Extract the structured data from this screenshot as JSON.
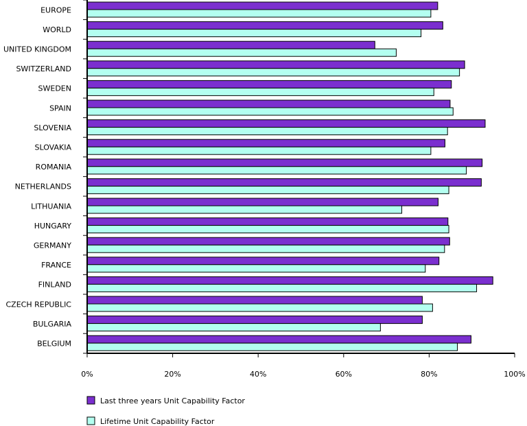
{
  "chart_data": {
    "type": "bar",
    "orientation": "horizontal",
    "categories": [
      "EUROPE",
      "WORLD",
      "UNITED KINGDOM",
      "SWITZERLAND",
      "SWEDEN",
      "SPAIN",
      "SLOVENIA",
      "SLOVAKIA",
      "ROMANIA",
      "NETHERLANDS",
      "LITHUANIA",
      "HUNGARY",
      "GERMANY",
      "FRANCE",
      "FINLAND",
      "CZECH REPUBLIC",
      "BULGARIA",
      "BELGIUM"
    ],
    "series": [
      {
        "name": "Last three years Unit Capability Factor",
        "color": "#7b2fcf",
        "values": [
          82,
          83.2,
          67.3,
          88.3,
          85.2,
          84.9,
          93.1,
          83.7,
          92.4,
          92.2,
          82.1,
          84.4,
          84.8,
          82.3,
          94.9,
          78.4,
          78.4,
          89.8
        ]
      },
      {
        "name": "Lifetime Unit Capability Factor",
        "color": "#b3fff0",
        "values": [
          80.4,
          78.1,
          72.3,
          87.1,
          81.1,
          85.6,
          84.3,
          80.4,
          88.7,
          84.6,
          73.6,
          84.6,
          83.6,
          79.1,
          91.1,
          80.8,
          68.6,
          86.6
        ]
      }
    ],
    "xlim": [
      0,
      100
    ],
    "xticks": [
      "0%",
      "20%",
      "40%",
      "60%",
      "80%",
      "100%"
    ],
    "grid": false,
    "legend_position": "bottom-left"
  }
}
